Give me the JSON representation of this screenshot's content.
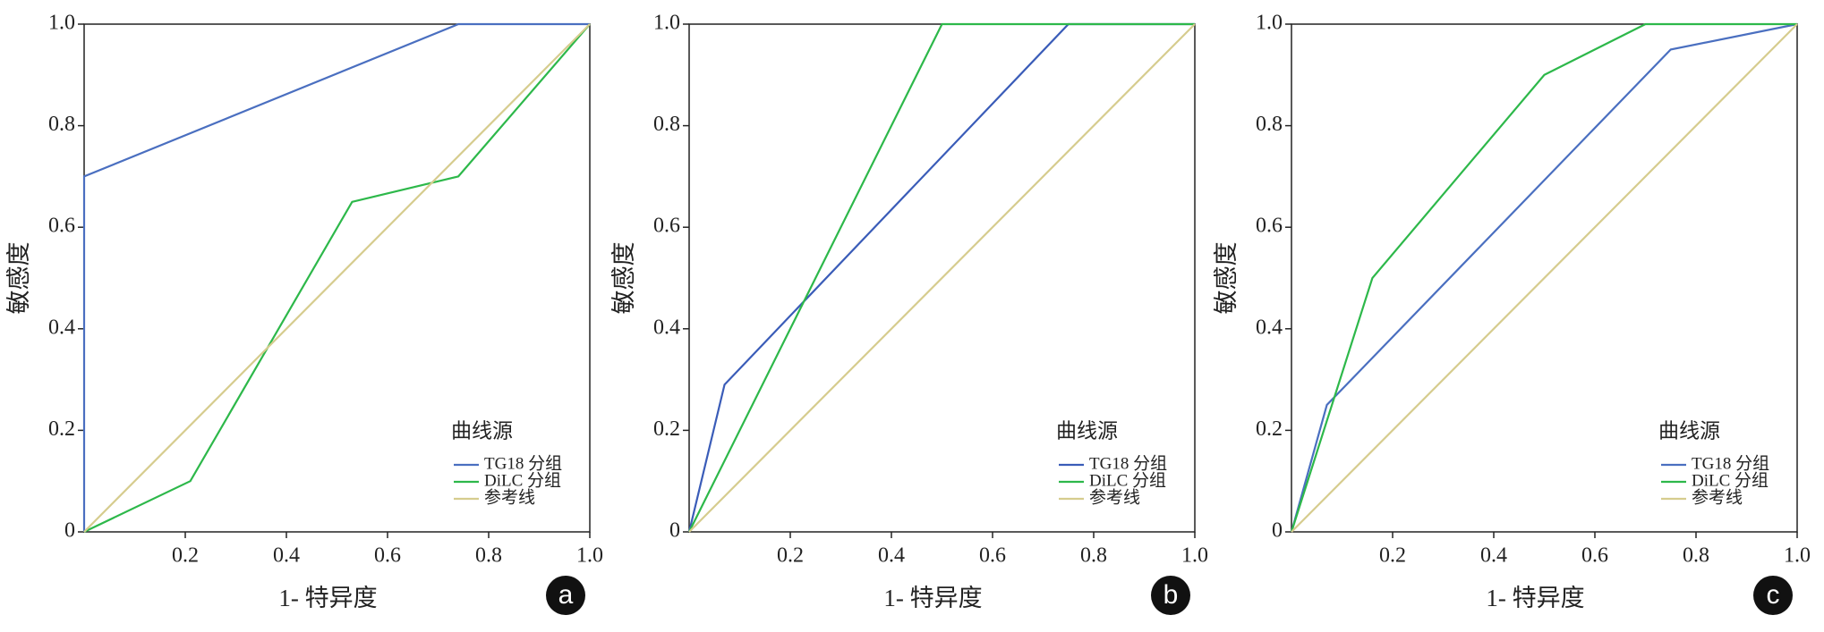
{
  "chart_data": [
    {
      "type": "line",
      "panel_label": "a",
      "xlabel": "1- 特异度",
      "ylabel": "敏感度",
      "legend_title": "曲线源",
      "xlim": [
        0,
        1
      ],
      "ylim": [
        0,
        1
      ],
      "xticks": [
        0.2,
        0.4,
        0.6,
        0.8,
        {
          "value": 1,
          "label": "1.0"
        }
      ],
      "yticks": [
        0,
        0.2,
        0.4,
        0.6,
        0.8,
        {
          "value": 1,
          "label": "1.0"
        }
      ],
      "series": [
        {
          "name": "TG18 分组",
          "color": "#4a6fc0",
          "x": [
            0,
            0,
            0.74,
            1
          ],
          "values": [
            0,
            0.7,
            1,
            1
          ]
        },
        {
          "name": "DiLC 分组",
          "color": "#2db84a",
          "x": [
            0,
            0.21,
            0.53,
            0.74,
            1
          ],
          "values": [
            0,
            0.1,
            0.65,
            0.7,
            1
          ]
        },
        {
          "name": "参考线",
          "color": "#d6cc8e",
          "x": [
            0,
            1
          ],
          "values": [
            0,
            1
          ]
        }
      ]
    },
    {
      "type": "line",
      "panel_label": "b",
      "xlabel": "1- 特异度",
      "ylabel": "敏感度",
      "legend_title": "曲线源",
      "xlim": [
        0,
        1
      ],
      "ylim": [
        0,
        1
      ],
      "xticks": [
        0.2,
        0.4,
        0.6,
        0.8,
        {
          "value": 1,
          "label": "1.0"
        }
      ],
      "yticks": [
        0,
        0.2,
        0.4,
        0.6,
        0.8,
        {
          "value": 1,
          "label": "1.0"
        }
      ],
      "series": [
        {
          "name": "TG18 分组",
          "color": "#3a5cb8",
          "x": [
            0,
            0.07,
            0.75,
            1
          ],
          "values": [
            0,
            0.29,
            1,
            1
          ]
        },
        {
          "name": "DiLC 分组",
          "color": "#2db84a",
          "x": [
            0,
            0.5,
            1
          ],
          "values": [
            0,
            1,
            1
          ]
        },
        {
          "name": "参考线",
          "color": "#d6cc8e",
          "x": [
            0,
            1
          ],
          "values": [
            0,
            1
          ]
        }
      ]
    },
    {
      "type": "line",
      "panel_label": "c",
      "xlabel": "1- 特异度",
      "ylabel": "敏感度",
      "legend_title": "曲线源",
      "xlim": [
        0,
        1
      ],
      "ylim": [
        0,
        1
      ],
      "xticks": [
        0.2,
        0.4,
        0.6,
        0.8,
        {
          "value": 1,
          "label": "1.0"
        }
      ],
      "yticks": [
        0,
        0.2,
        0.4,
        0.6,
        0.8,
        {
          "value": 1,
          "label": "1.0"
        }
      ],
      "series": [
        {
          "name": "TG18 分组",
          "color": "#4a6fc0",
          "x": [
            0,
            0.07,
            0.75,
            1
          ],
          "values": [
            0,
            0.25,
            0.95,
            1
          ]
        },
        {
          "name": "DiLC 分组",
          "color": "#2db84a",
          "x": [
            0,
            0.16,
            0.5,
            0.7,
            1
          ],
          "values": [
            0,
            0.5,
            0.9,
            1,
            1
          ]
        },
        {
          "name": "参考线",
          "color": "#d6cc8e",
          "x": [
            0,
            1
          ],
          "values": [
            0,
            1
          ]
        }
      ]
    }
  ]
}
